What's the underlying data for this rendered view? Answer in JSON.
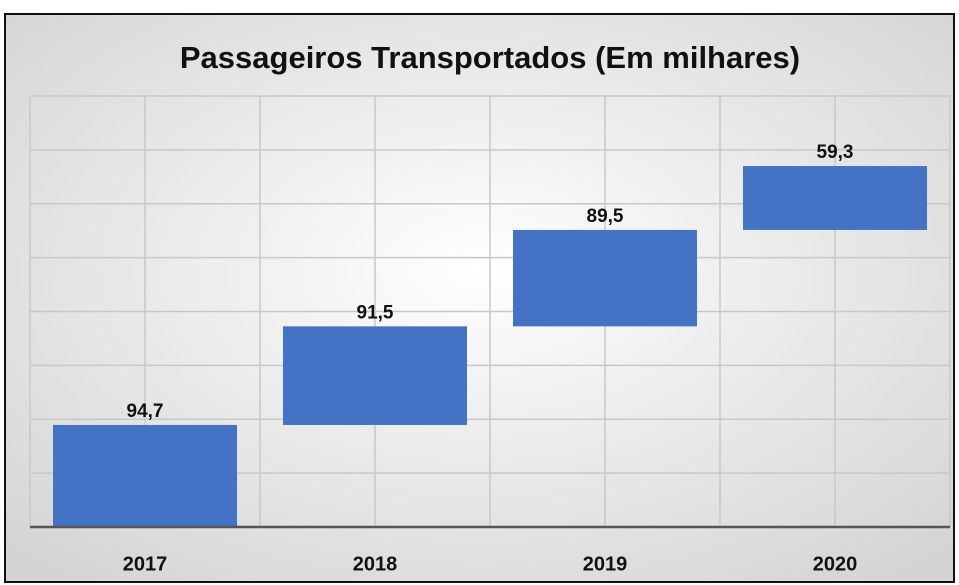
{
  "chart_data": {
    "type": "waterfall",
    "title": "Passageiros Transportados (Em milhares)",
    "categories": [
      "2017",
      "2018",
      "2019",
      "2020"
    ],
    "values": [
      94.7,
      91.5,
      89.5,
      59.3
    ],
    "value_labels": [
      "94,7",
      "91,5",
      "89,5",
      "59,3"
    ],
    "color": "#4472c4",
    "ylim": [
      0,
      400
    ],
    "yticks": [
      0,
      50,
      100,
      150,
      200,
      250,
      300,
      350,
      400
    ],
    "grid": true
  }
}
